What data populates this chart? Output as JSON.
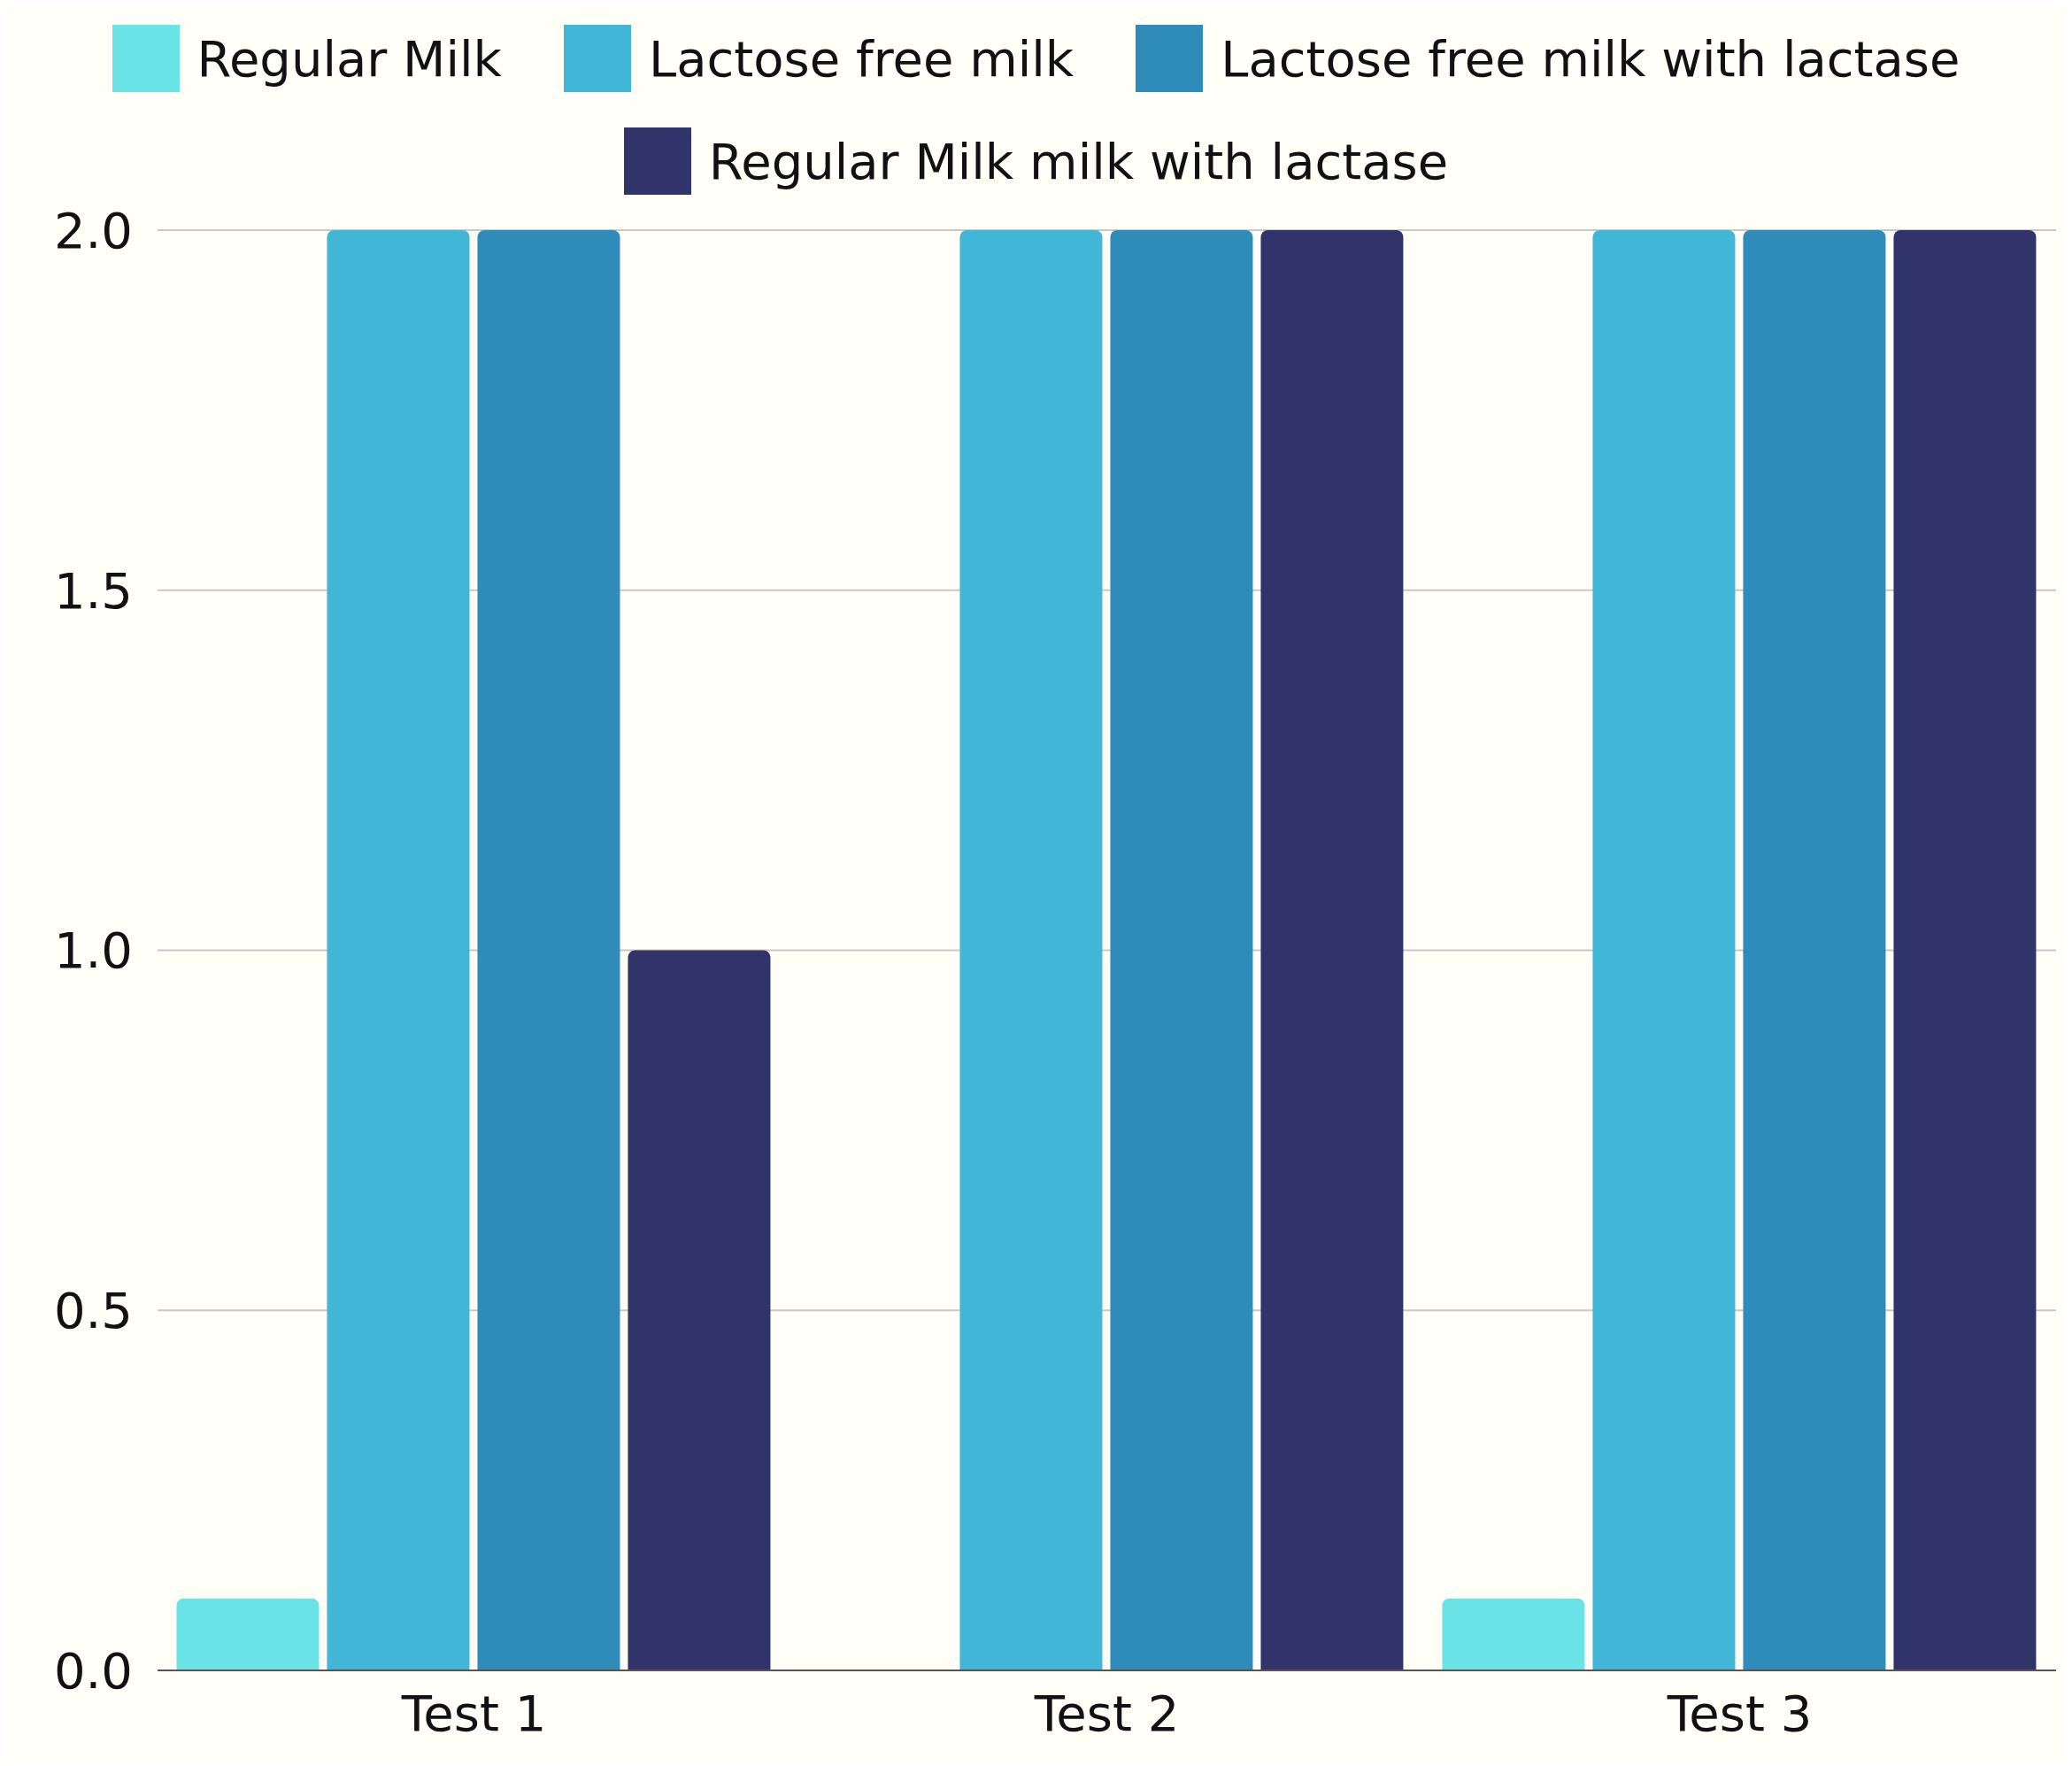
{
  "chart_data": {
    "type": "bar",
    "categories": [
      "Test 1",
      "Test 2",
      "Test 3"
    ],
    "series": [
      {
        "name": "Regular Milk",
        "color": "#6ae3e6",
        "values": [
          0.1,
          0,
          0.1
        ]
      },
      {
        "name": "Lactose free milk",
        "color": "#42b6d6",
        "values": [
          2,
          2,
          2
        ]
      },
      {
        "name": "Lactose free milk with lactase",
        "color": "#2e8bba",
        "values": [
          2,
          2,
          2
        ]
      },
      {
        "name": "Regular Milk milk with lactase",
        "color": "#31346b",
        "values": [
          1,
          2,
          2
        ]
      }
    ],
    "ylim": [
      0,
      2
    ],
    "yticks": [
      {
        "value": 0,
        "label": "0.0"
      },
      {
        "value": 0.5,
        "label": "0.5"
      },
      {
        "value": 1,
        "label": "1.0"
      },
      {
        "value": 1.5,
        "label": "1.5"
      },
      {
        "value": 2,
        "label": "2.0"
      }
    ],
    "grid": "y",
    "legend": "top"
  }
}
